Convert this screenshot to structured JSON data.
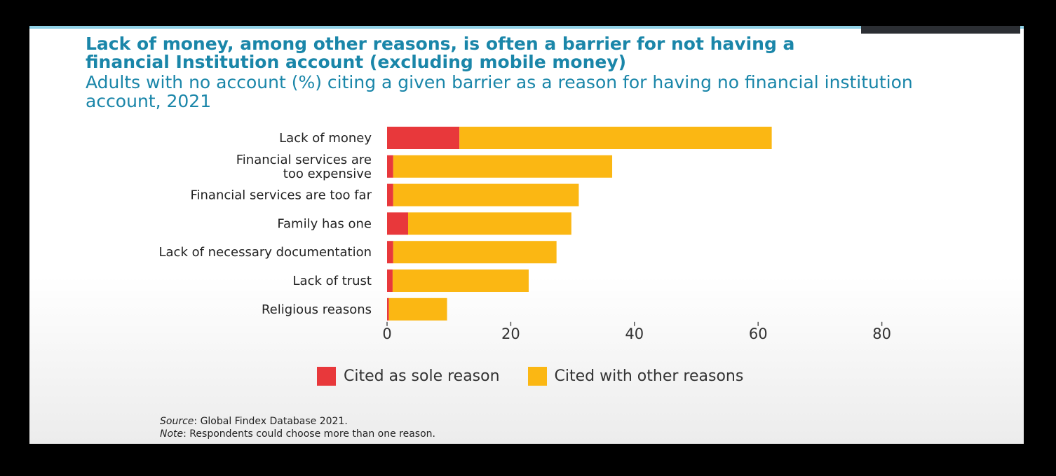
{
  "title": "Lack of money, among other reasons, is often a barrier for not having a financial Institution account (excluding mobile money)",
  "subtitle": "Adults with no account (%) citing a given barrier as a reason for having no financial institution account, 2021",
  "chart_data": {
    "type": "bar",
    "orientation": "horizontal",
    "stacked": true,
    "categories": [
      [
        "Lack of money"
      ],
      [
        "Financial services are",
        "too expensive"
      ],
      [
        "Financial services are too far"
      ],
      [
        "Family has one"
      ],
      [
        "Lack of necessary documentation"
      ],
      [
        "Lack of trust"
      ],
      [
        "Religious reasons"
      ]
    ],
    "series": [
      {
        "name": "Cited as sole reason",
        "color": "#e8383b",
        "values": [
          11.7,
          1.0,
          1.0,
          3.4,
          1.0,
          0.9,
          0.3
        ]
      },
      {
        "name": "Cited with other reasons",
        "color": "#fbb713",
        "values": [
          50.5,
          35.4,
          30.0,
          26.4,
          26.4,
          22.0,
          9.4
        ]
      }
    ],
    "xlim": [
      0,
      80
    ],
    "xticks": [
      0,
      20,
      40,
      60,
      80
    ],
    "grid": false,
    "legend": "bottom"
  },
  "notes": {
    "source_label": "Source",
    "source_text": ": Global Findex Database 2021.",
    "note_label": "Note",
    "note_text": ": Respondents could choose more than one reason."
  }
}
